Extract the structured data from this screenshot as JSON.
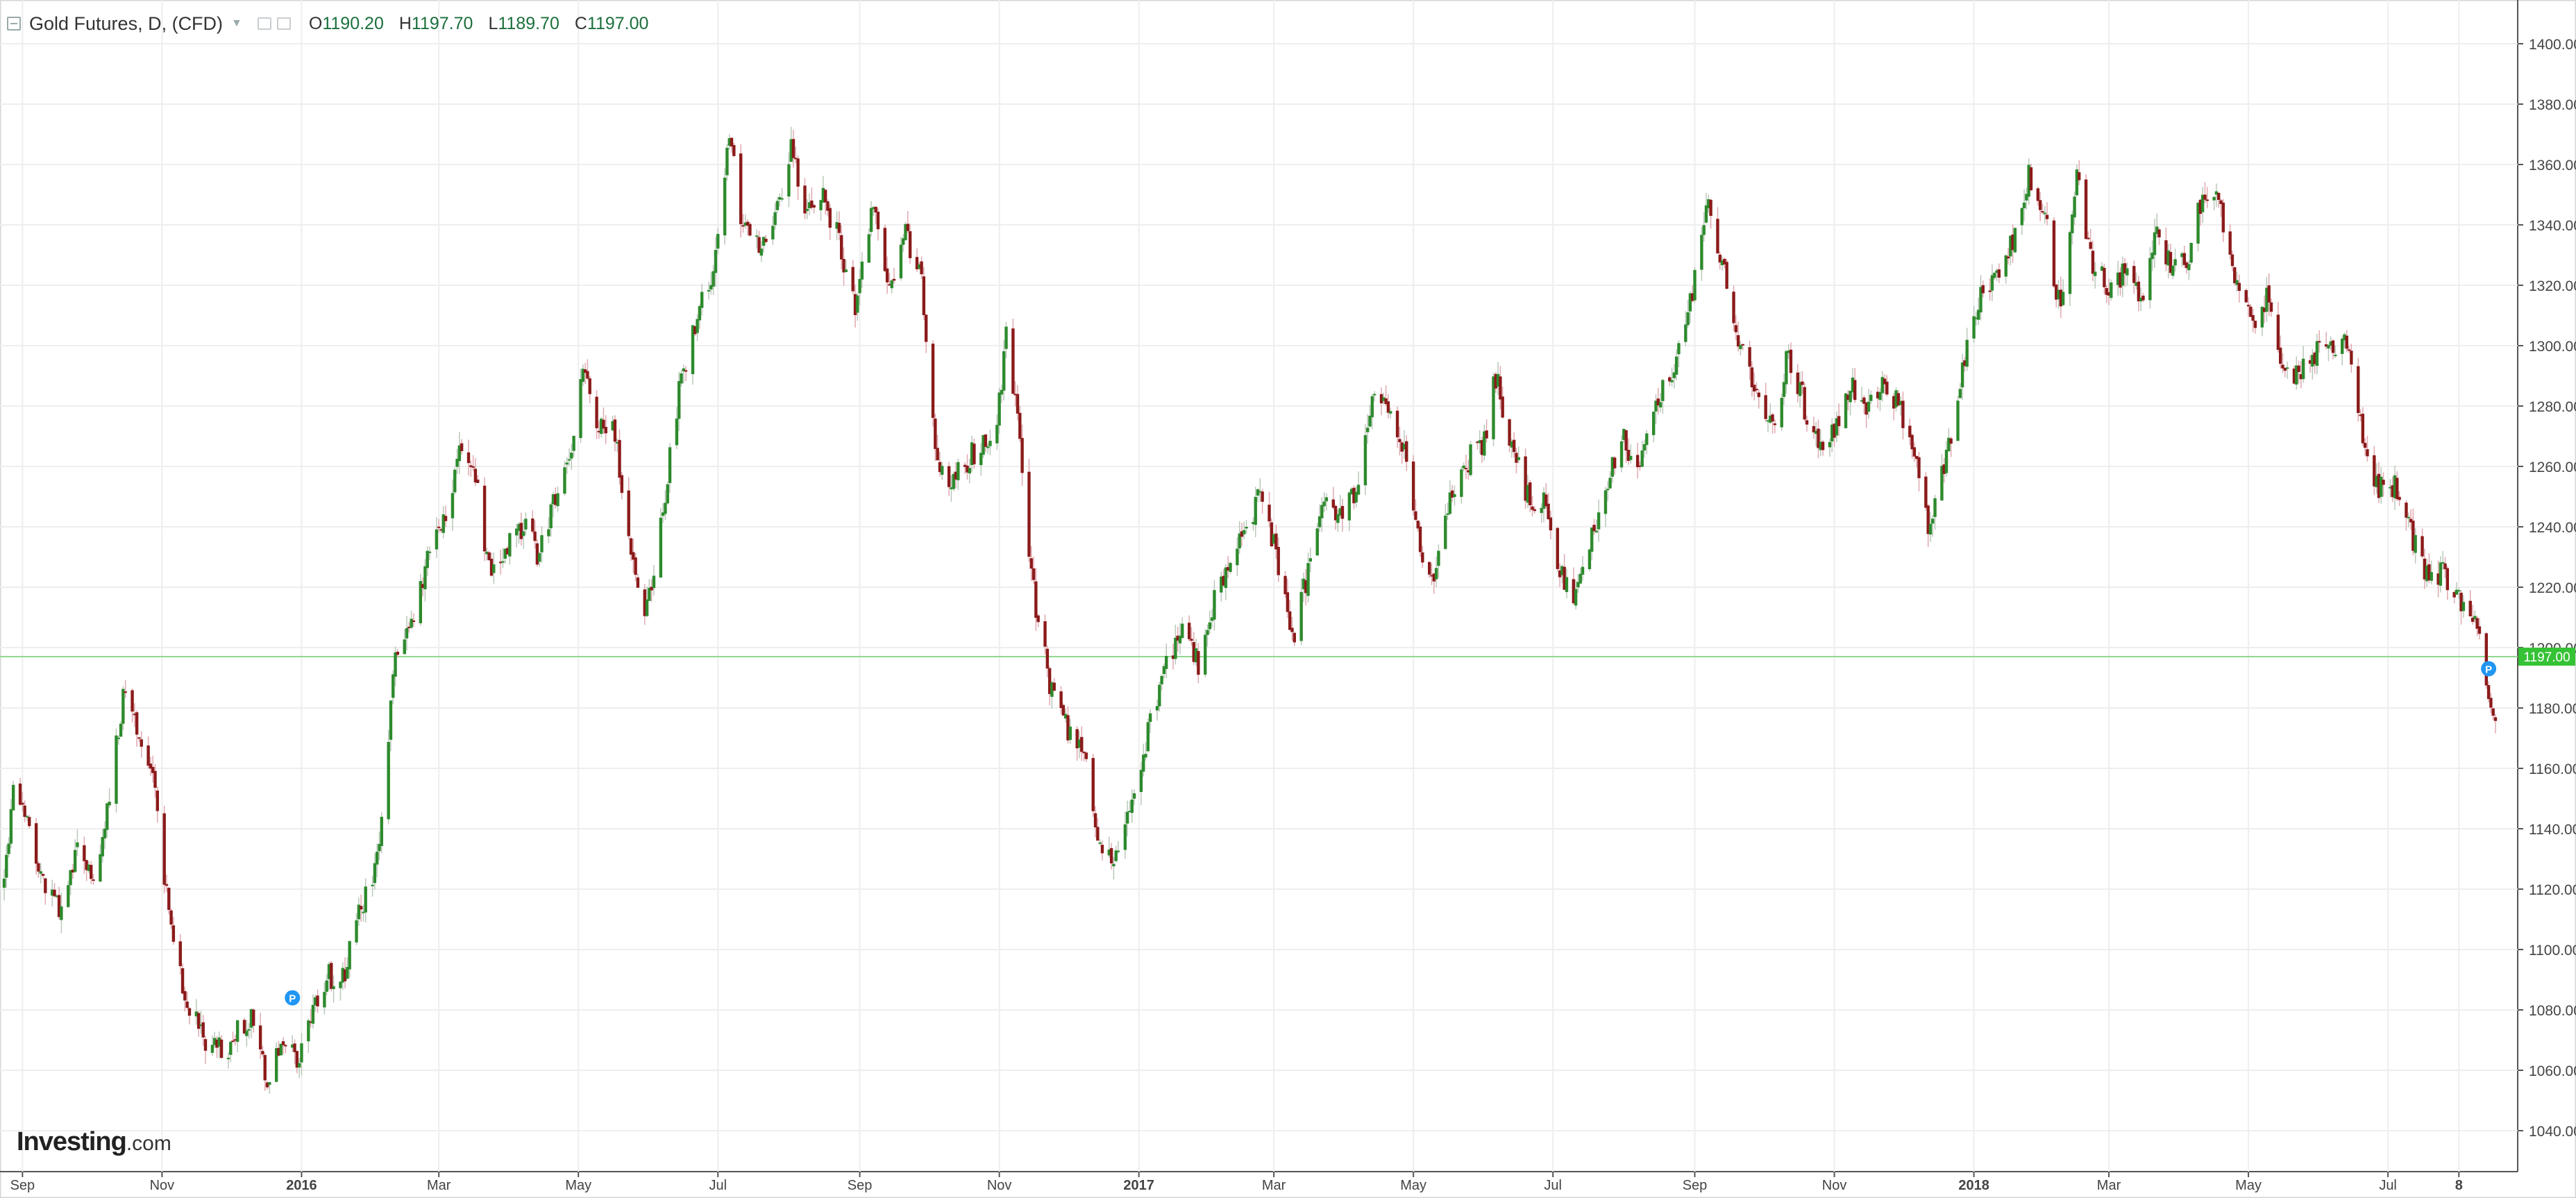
{
  "header": {
    "symbol": "Gold Futures, D, (CFD)",
    "open_label": "O",
    "open": "1190.20",
    "high_label": "H",
    "high": "1197.70",
    "low_label": "L",
    "low": "1189.70",
    "close_label": "C",
    "close": "1197.00"
  },
  "watermark": {
    "brand": "Investing",
    "suffix": ".com"
  },
  "chart_data": {
    "type": "candlestick",
    "instrument": "Gold Futures, D, (CFD)",
    "y_axis": {
      "range": [
        1030,
        1410
      ],
      "ticks": [
        "1040.00",
        "1060.00",
        "1080.00",
        "1100.00",
        "1120.00",
        "1140.00",
        "1160.00",
        "1180.00",
        "1200.00",
        "1220.00",
        "1240.00",
        "1260.00",
        "1280.00",
        "1300.00",
        "1320.00",
        "1340.00",
        "1360.00",
        "1380.00",
        "1400.00"
      ]
    },
    "x_axis": {
      "ticks": [
        {
          "label": "Sep",
          "date": "2015-09-01"
        },
        {
          "label": "Nov",
          "date": "2015-11-01"
        },
        {
          "label": "2016",
          "date": "2016-01-01",
          "bold": true
        },
        {
          "label": "Mar",
          "date": "2016-03-01"
        },
        {
          "label": "May",
          "date": "2016-05-01"
        },
        {
          "label": "Jul",
          "date": "2016-07-01"
        },
        {
          "label": "Sep",
          "date": "2016-09-01"
        },
        {
          "label": "Nov",
          "date": "2016-11-01"
        },
        {
          "label": "2017",
          "date": "2017-01-01",
          "bold": true
        },
        {
          "label": "Mar",
          "date": "2017-03-01"
        },
        {
          "label": "May",
          "date": "2017-05-01"
        },
        {
          "label": "Jul",
          "date": "2017-07-01"
        },
        {
          "label": "Sep",
          "date": "2017-09-01"
        },
        {
          "label": "Nov",
          "date": "2017-11-01"
        },
        {
          "label": "2018",
          "date": "2018-01-01",
          "bold": true
        },
        {
          "label": "Mar",
          "date": "2018-03-01"
        },
        {
          "label": "May",
          "date": "2018-05-01"
        },
        {
          "label": "Jul",
          "date": "2018-07-01"
        },
        {
          "label": "8",
          "date": "2018-08-01",
          "bold": true
        }
      ]
    },
    "last_price": "1197.00",
    "current_price_line": 1197.0,
    "colors": {
      "up": "#2d8a2d",
      "down": "#8b1a1a",
      "grid": "#eeeeee",
      "price_line": "#8fd88f",
      "price_tag": "#35c235",
      "marker": "#2196f3"
    },
    "markers": [
      {
        "label": "P",
        "date": "2015-12-28",
        "price": 1084
      },
      {
        "label": "P",
        "date": "2018-08-14",
        "price": 1193
      }
    ],
    "path_points": [
      [
        "2015-08-24",
        1120
      ],
      [
        "2015-08-28",
        1158
      ],
      [
        "2015-09-08",
        1125
      ],
      [
        "2015-09-18",
        1113
      ],
      [
        "2015-09-25",
        1132
      ],
      [
        "2015-10-02",
        1122
      ],
      [
        "2015-10-09",
        1150
      ],
      [
        "2015-10-15",
        1185
      ],
      [
        "2015-10-22",
        1170
      ],
      [
        "2015-10-28",
        1158
      ],
      [
        "2015-11-05",
        1105
      ],
      [
        "2015-11-11",
        1086
      ],
      [
        "2015-11-20",
        1070
      ],
      [
        "2015-11-30",
        1064
      ],
      [
        "2015-12-04",
        1074
      ],
      [
        "2015-12-10",
        1078
      ],
      [
        "2015-12-17",
        1055
      ],
      [
        "2015-12-23",
        1072
      ],
      [
        "2015-12-31",
        1062
      ],
      [
        "2016-01-06",
        1082
      ],
      [
        "2016-01-12",
        1092
      ],
      [
        "2016-01-18",
        1088
      ],
      [
        "2016-01-26",
        1112
      ],
      [
        "2016-02-03",
        1128
      ],
      [
        "2016-02-11",
        1198
      ],
      [
        "2016-02-18",
        1210
      ],
      [
        "2016-02-26",
        1232
      ],
      [
        "2016-03-02",
        1240
      ],
      [
        "2016-03-10",
        1265
      ],
      [
        "2016-03-17",
        1255
      ],
      [
        "2016-03-24",
        1222
      ],
      [
        "2016-03-31",
        1235
      ],
      [
        "2016-04-07",
        1240
      ],
      [
        "2016-04-14",
        1230
      ],
      [
        "2016-04-21",
        1250
      ],
      [
        "2016-04-28",
        1268
      ],
      [
        "2016-05-03",
        1292
      ],
      [
        "2016-05-09",
        1270
      ],
      [
        "2016-05-16",
        1278
      ],
      [
        "2016-05-24",
        1230
      ],
      [
        "2016-05-31",
        1212
      ],
      [
        "2016-06-07",
        1245
      ],
      [
        "2016-06-14",
        1285
      ],
      [
        "2016-06-24",
        1315
      ],
      [
        "2016-06-29",
        1325
      ],
      [
        "2016-07-06",
        1368
      ],
      [
        "2016-07-12",
        1340
      ],
      [
        "2016-07-19",
        1332
      ],
      [
        "2016-07-27",
        1345
      ],
      [
        "2016-08-02",
        1365
      ],
      [
        "2016-08-09",
        1342
      ],
      [
        "2016-08-16",
        1350
      ],
      [
        "2016-08-23",
        1335
      ],
      [
        "2016-08-30",
        1312
      ],
      [
        "2016-09-07",
        1348
      ],
      [
        "2016-09-14",
        1320
      ],
      [
        "2016-09-21",
        1338
      ],
      [
        "2016-09-28",
        1320
      ],
      [
        "2016-10-04",
        1265
      ],
      [
        "2016-10-11",
        1255
      ],
      [
        "2016-10-18",
        1262
      ],
      [
        "2016-10-25",
        1268
      ],
      [
        "2016-10-31",
        1275
      ],
      [
        "2016-11-04",
        1302
      ],
      [
        "2016-11-10",
        1270
      ],
      [
        "2016-11-15",
        1222
      ],
      [
        "2016-11-24",
        1185
      ],
      [
        "2016-12-01",
        1172
      ],
      [
        "2016-12-08",
        1168
      ],
      [
        "2016-12-15",
        1132
      ],
      [
        "2016-12-22",
        1132
      ],
      [
        "2016-12-29",
        1150
      ],
      [
        "2017-01-06",
        1175
      ],
      [
        "2017-01-13",
        1195
      ],
      [
        "2017-01-20",
        1205
      ],
      [
        "2017-01-27",
        1195
      ],
      [
        "2017-02-03",
        1215
      ],
      [
        "2017-02-10",
        1230
      ],
      [
        "2017-02-17",
        1238
      ],
      [
        "2017-02-24",
        1252
      ],
      [
        "2017-03-02",
        1230
      ],
      [
        "2017-03-09",
        1202
      ],
      [
        "2017-03-16",
        1225
      ],
      [
        "2017-03-23",
        1250
      ],
      [
        "2017-03-30",
        1245
      ],
      [
        "2017-04-06",
        1252
      ],
      [
        "2017-04-13",
        1285
      ],
      [
        "2017-04-20",
        1280
      ],
      [
        "2017-04-27",
        1265
      ],
      [
        "2017-05-04",
        1230
      ],
      [
        "2017-05-09",
        1220
      ],
      [
        "2017-05-18",
        1252
      ],
      [
        "2017-05-25",
        1262
      ],
      [
        "2017-06-01",
        1268
      ],
      [
        "2017-06-06",
        1290
      ],
      [
        "2017-06-13",
        1268
      ],
      [
        "2017-06-21",
        1248
      ],
      [
        "2017-06-28",
        1248
      ],
      [
        "2017-07-03",
        1230
      ],
      [
        "2017-07-10",
        1212
      ],
      [
        "2017-07-17",
        1235
      ],
      [
        "2017-07-25",
        1256
      ],
      [
        "2017-08-01",
        1268
      ],
      [
        "2017-08-08",
        1262
      ],
      [
        "2017-08-15",
        1282
      ],
      [
        "2017-08-22",
        1288
      ],
      [
        "2017-08-29",
        1310
      ],
      [
        "2017-09-07",
        1348
      ],
      [
        "2017-09-14",
        1325
      ],
      [
        "2017-09-21",
        1298
      ],
      [
        "2017-09-28",
        1283
      ],
      [
        "2017-10-05",
        1272
      ],
      [
        "2017-10-12",
        1298
      ],
      [
        "2017-10-19",
        1280
      ],
      [
        "2017-10-26",
        1268
      ],
      [
        "2017-11-02",
        1275
      ],
      [
        "2017-11-09",
        1285
      ],
      [
        "2017-11-16",
        1280
      ],
      [
        "2017-11-23",
        1290
      ],
      [
        "2017-11-30",
        1278
      ],
      [
        "2017-12-06",
        1265
      ],
      [
        "2017-12-12",
        1242
      ],
      [
        "2017-12-19",
        1258
      ],
      [
        "2017-12-27",
        1290
      ],
      [
        "2018-01-04",
        1320
      ],
      [
        "2018-01-11",
        1322
      ],
      [
        "2018-01-18",
        1335
      ],
      [
        "2018-01-25",
        1358
      ],
      [
        "2018-02-01",
        1342
      ],
      [
        "2018-02-08",
        1310
      ],
      [
        "2018-02-15",
        1355
      ],
      [
        "2018-02-22",
        1328
      ],
      [
        "2018-03-01",
        1318
      ],
      [
        "2018-03-08",
        1325
      ],
      [
        "2018-03-15",
        1315
      ],
      [
        "2018-03-22",
        1338
      ],
      [
        "2018-03-29",
        1325
      ],
      [
        "2018-04-05",
        1330
      ],
      [
        "2018-04-11",
        1350
      ],
      [
        "2018-04-18",
        1348
      ],
      [
        "2018-04-25",
        1322
      ],
      [
        "2018-05-02",
        1308
      ],
      [
        "2018-05-09",
        1315
      ],
      [
        "2018-05-16",
        1290
      ],
      [
        "2018-05-23",
        1292
      ],
      [
        "2018-05-30",
        1298
      ],
      [
        "2018-06-06",
        1298
      ],
      [
        "2018-06-13",
        1302
      ],
      [
        "2018-06-20",
        1272
      ],
      [
        "2018-06-27",
        1252
      ],
      [
        "2018-07-04",
        1254
      ],
      [
        "2018-07-11",
        1238
      ],
      [
        "2018-07-18",
        1225
      ],
      [
        "2018-07-25",
        1225
      ],
      [
        "2018-08-01",
        1215
      ],
      [
        "2018-08-08",
        1208
      ],
      [
        "2018-08-14",
        1185
      ],
      [
        "2018-08-17",
        1178
      ]
    ]
  }
}
